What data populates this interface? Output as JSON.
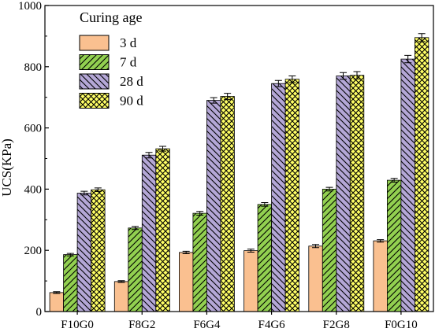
{
  "chart_data": {
    "type": "bar",
    "categories": [
      "F10G0",
      "F8G2",
      "F6G4",
      "F4G6",
      "F2G8",
      "F0G10"
    ],
    "series": [
      {
        "name": "3 d",
        "values": [
          62,
          98,
          193,
          199,
          214,
          231
        ],
        "errors": [
          3,
          3,
          4,
          5,
          5,
          4
        ],
        "color": "#FAC090",
        "pattern": "none"
      },
      {
        "name": "7 d",
        "values": [
          186,
          273,
          321,
          350,
          400,
          429
        ],
        "errors": [
          4,
          5,
          6,
          6,
          6,
          6
        ],
        "color": "#92D050",
        "pattern": "diagonal"
      },
      {
        "name": "28 d",
        "values": [
          387,
          511,
          690,
          745,
          770,
          825
        ],
        "errors": [
          6,
          9,
          9,
          10,
          11,
          12
        ],
        "color": "#B4A7D6",
        "pattern": "backdiagonal"
      },
      {
        "name": "90 d",
        "values": [
          398,
          532,
          703,
          759,
          772,
          895
        ],
        "errors": [
          6,
          8,
          10,
          11,
          12,
          13
        ],
        "color": "#FFFF66",
        "pattern": "crosshatch"
      }
    ],
    "title": "",
    "xlabel": "",
    "ylabel": "UCS(KPa)",
    "ylim": [
      0,
      1000
    ],
    "yticks": [
      "0",
      "200",
      "400",
      "600",
      "800",
      "1000"
    ],
    "legend_title": "Curing age",
    "legend_position": "top-left",
    "error_bars": true,
    "grid": false
  }
}
